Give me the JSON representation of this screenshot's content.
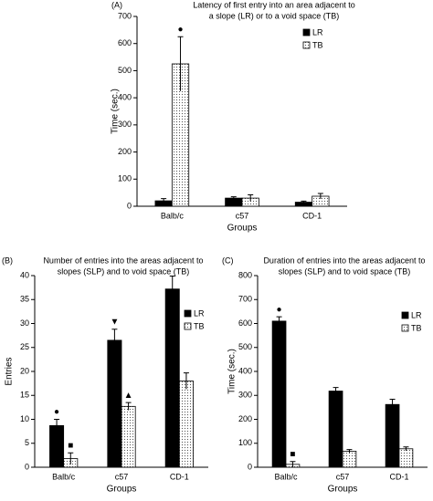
{
  "chart_data": [
    {
      "type": "bar",
      "panel": "(A)",
      "title": [
        "Latency of first entry into an area adjacent to",
        "a slope (LR) or to a void space (TB)"
      ],
      "y_label": "Time (sec.)",
      "x_label": "Groups",
      "categories": [
        "Balb/c",
        "c57",
        "CD-1"
      ],
      "series": [
        {
          "name": "LR",
          "color": "#000000",
          "values": [
            20,
            30,
            15
          ],
          "errors": [
            8,
            5,
            4
          ],
          "markers": [
            null,
            null,
            null
          ]
        },
        {
          "name": "TB",
          "color": "#ffffff",
          "pattern": "dots",
          "values": [
            525,
            30,
            37
          ],
          "errors": [
            100,
            12,
            10
          ],
          "markers": [
            "●",
            null,
            null
          ]
        }
      ],
      "ylim": [
        0,
        700
      ],
      "yticks": [
        0,
        100,
        200,
        300,
        400,
        500,
        600,
        700
      ]
    },
    {
      "type": "bar",
      "panel": "(B)",
      "title": [
        "Number of entries into the areas adjacent to",
        "slopes (SLP) and to void space (TB)"
      ],
      "y_label": "Entries",
      "x_label": "Groups",
      "categories": [
        "Balb/c",
        "c57",
        "CD-1"
      ],
      "series": [
        {
          "name": "LR",
          "color": "#000000",
          "values": [
            8.7,
            26.5,
            37.2
          ],
          "errors": [
            1.3,
            2.3,
            2.7
          ],
          "markers": [
            "●",
            "▼",
            null
          ]
        },
        {
          "name": "TB",
          "color": "#ffffff",
          "pattern": "dots",
          "values": [
            1.8,
            12.7,
            18
          ],
          "errors": [
            1.2,
            0.8,
            1.7
          ],
          "markers": [
            "■",
            "▲",
            null
          ]
        }
      ],
      "ylim": [
        0,
        40
      ],
      "yticks": [
        0,
        5,
        10,
        15,
        20,
        25,
        30,
        35,
        40
      ]
    },
    {
      "type": "bar",
      "panel": "(C)",
      "title": [
        "Duration of entries into the areas adjacent to",
        "slopes (SLP) and to void space (TB)"
      ],
      "y_label": "Time (sec.)",
      "x_label": "Groups",
      "categories": [
        "Balb/c",
        "c57",
        "CD-1"
      ],
      "series": [
        {
          "name": "LR",
          "color": "#000000",
          "values": [
            610,
            318,
            262
          ],
          "errors": [
            18,
            15,
            22
          ],
          "markers": [
            "●",
            null,
            null
          ]
        },
        {
          "name": "TB",
          "color": "#ffffff",
          "pattern": "dots",
          "values": [
            12,
            67,
            77
          ],
          "errors": [
            12,
            7,
            8
          ],
          "markers": [
            "■",
            null,
            null
          ]
        }
      ],
      "ylim": [
        0,
        800
      ],
      "yticks": [
        0,
        100,
        200,
        300,
        400,
        500,
        600,
        700,
        800
      ]
    }
  ]
}
